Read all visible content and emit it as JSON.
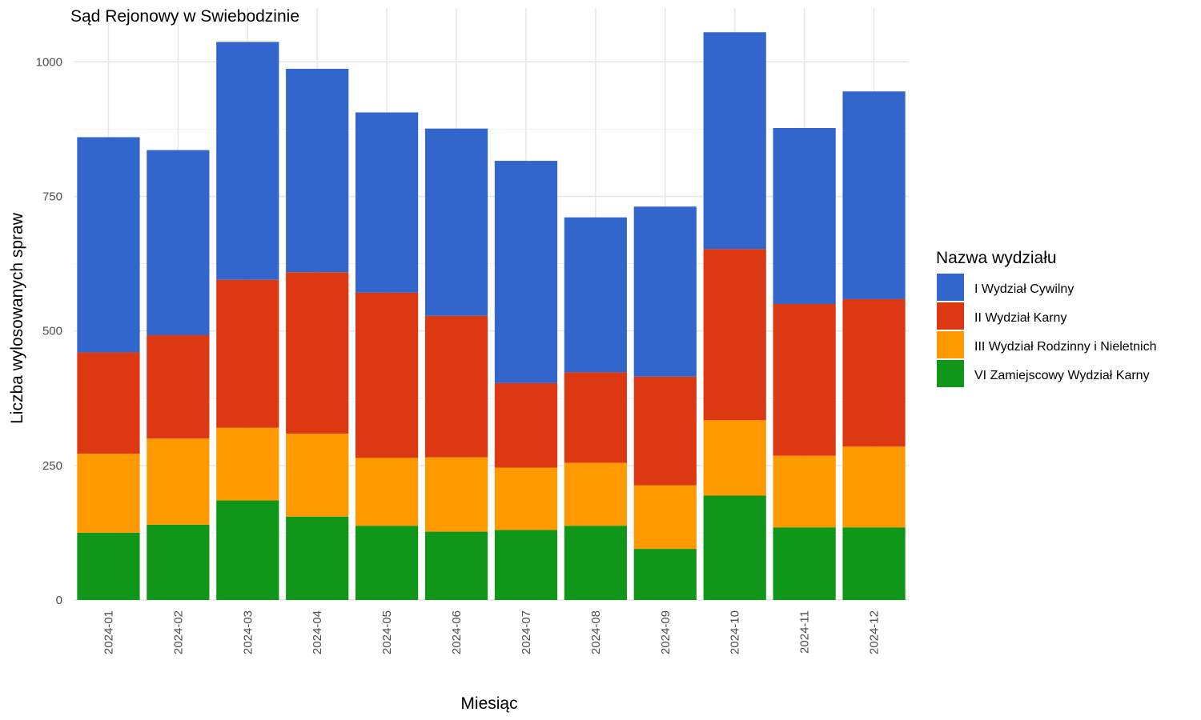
{
  "chart_data": {
    "type": "bar",
    "stacked": true,
    "title": "Sąd Rejonowy w Swiebodzinie",
    "xlabel": "Miesiąc",
    "ylabel": "Liczba wylosowanych spraw",
    "ylim": [
      0,
      1100
    ],
    "yticks": [
      0,
      250,
      500,
      750,
      1000
    ],
    "grid": true,
    "legend_title": "Nazwa wydziału",
    "legend_position": "right",
    "categories": [
      "2024-01",
      "2024-02",
      "2024-03",
      "2024-04",
      "2024-05",
      "2024-06",
      "2024-07",
      "2024-08",
      "2024-09",
      "2024-10",
      "2024-11",
      "2024-12"
    ],
    "series": [
      {
        "name": "VI Zamiejscowy Wydział Karny",
        "color": "#109618",
        "values": [
          125,
          140,
          185,
          155,
          138,
          127,
          130,
          138,
          95,
          194,
          135,
          135
        ]
      },
      {
        "name": "III Wydział Rodzinny i Nieletnich",
        "color": "#FF9900",
        "values": [
          147,
          160,
          135,
          154,
          126,
          138,
          116,
          117,
          118,
          140,
          133,
          150
        ]
      },
      {
        "name": "II Wydział Karny",
        "color": "#DC3912",
        "values": [
          188,
          192,
          275,
          300,
          307,
          263,
          157,
          168,
          202,
          318,
          282,
          274
        ]
      },
      {
        "name": "I Wydział Cywilny",
        "color": "#3366CC",
        "values": [
          400,
          344,
          442,
          378,
          335,
          348,
          413,
          288,
          316,
          403,
          327,
          386
        ]
      }
    ],
    "legend_order": [
      "I Wydział Cywilny",
      "II Wydział Karny",
      "III Wydział Rodzinny i Nieletnich",
      "VI Zamiejscowy Wydział Karny"
    ]
  }
}
